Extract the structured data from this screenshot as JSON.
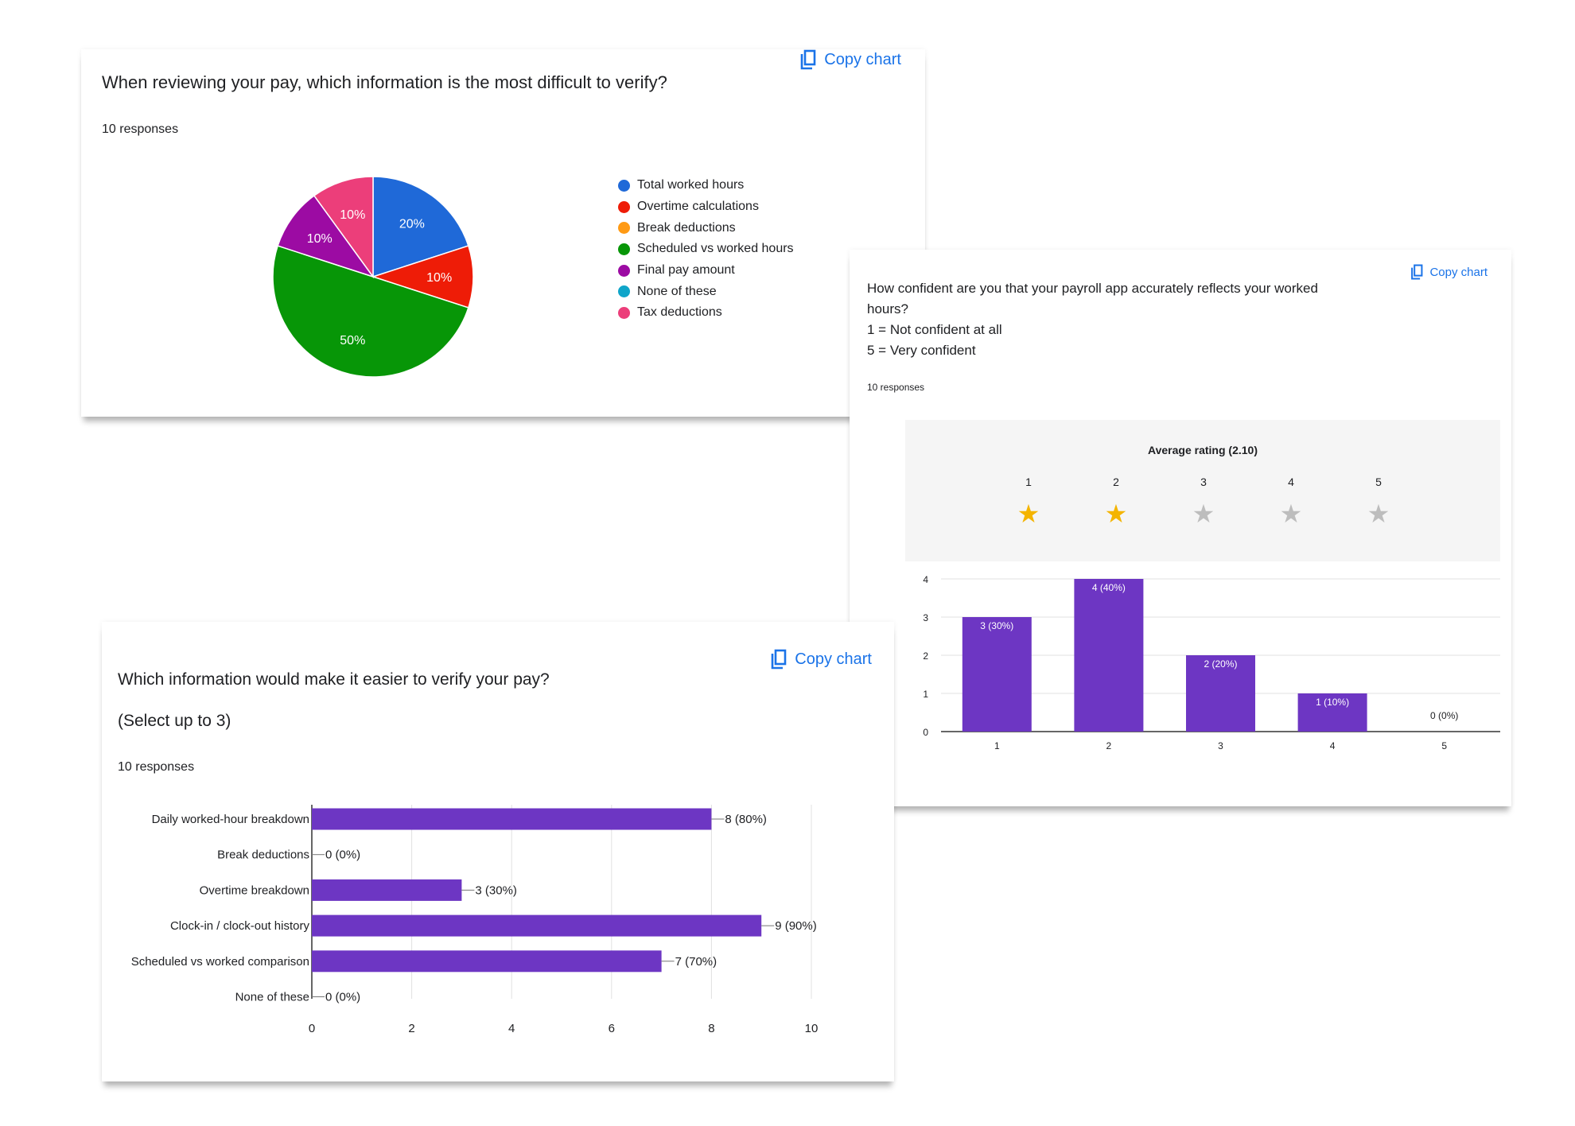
{
  "colors": {
    "accent_blue": "#1a73e8",
    "bar_purple": "#6d36c3",
    "star_active": "#f4b400",
    "star_inactive": "#bdbdbd"
  },
  "cards": [
    {
      "copy_label": "Copy chart",
      "question": "When reviewing your pay, which information is the most difficult to verify?",
      "responses": "10 responses"
    },
    {
      "copy_label": "Copy chart",
      "question_lines": [
        "How confident are you that your payroll app accurately reflects your worked",
        "hours?",
        "1 = Not confident at all",
        "5 = Very confident"
      ],
      "responses": "10 responses",
      "average_label": "Average rating (2.10)",
      "average_rating": 2.1
    },
    {
      "copy_label": "Copy chart",
      "question": "Which information would make it easier to verify your pay?",
      "subtitle": "(Select up to 3)",
      "responses": "10 responses"
    }
  ],
  "chart_data": [
    {
      "type": "pie",
      "legend_position": "right",
      "slices": [
        {
          "label": "Total worked hours",
          "value": 20,
          "display": "20%",
          "color": "#1f69d8"
        },
        {
          "label": "Overtime calculations",
          "value": 10,
          "display": "10%",
          "color": "#ee1c07"
        },
        {
          "label": "Break deductions",
          "value": 0,
          "display": "",
          "color": "#ff9a14"
        },
        {
          "label": "Scheduled vs worked hours",
          "value": 50,
          "display": "50%",
          "color": "#079607"
        },
        {
          "label": "Final pay amount",
          "value": 10,
          "display": "10%",
          "color": "#9c0ba3"
        },
        {
          "label": "None of these",
          "value": 0,
          "display": "",
          "color": "#0fa5c9"
        },
        {
          "label": "Tax deductions",
          "value": 10,
          "display": "10%",
          "color": "#ec3e7a"
        }
      ]
    },
    {
      "type": "bar",
      "categories": [
        "1",
        "2",
        "3",
        "4",
        "5"
      ],
      "values": [
        3,
        4,
        2,
        1,
        0
      ],
      "data_labels": [
        "3 (30%)",
        "4 (40%)",
        "2 (20%)",
        "1 (10%)",
        "0 (0%)"
      ],
      "ylim": [
        0,
        4
      ],
      "yticks": [
        "0",
        "1",
        "2",
        "3",
        "4"
      ],
      "grid": true,
      "color": "#6d36c3"
    },
    {
      "type": "bar",
      "orientation": "horizontal",
      "categories": [
        "Daily worked-hour breakdown",
        "Break deductions",
        "Overtime breakdown",
        "Clock-in / clock-out history",
        "Scheduled vs worked comparison",
        "None of these"
      ],
      "values": [
        8,
        0,
        3,
        9,
        7,
        0
      ],
      "data_labels": [
        "8 (80%)",
        "0 (0%)",
        "3 (30%)",
        "9 (90%)",
        "7 (70%)",
        "0 (0%)"
      ],
      "xlim": [
        0,
        10
      ],
      "xticks": [
        "0",
        "2",
        "4",
        "6",
        "8",
        "10"
      ],
      "grid": true,
      "color": "#6d36c3"
    }
  ]
}
